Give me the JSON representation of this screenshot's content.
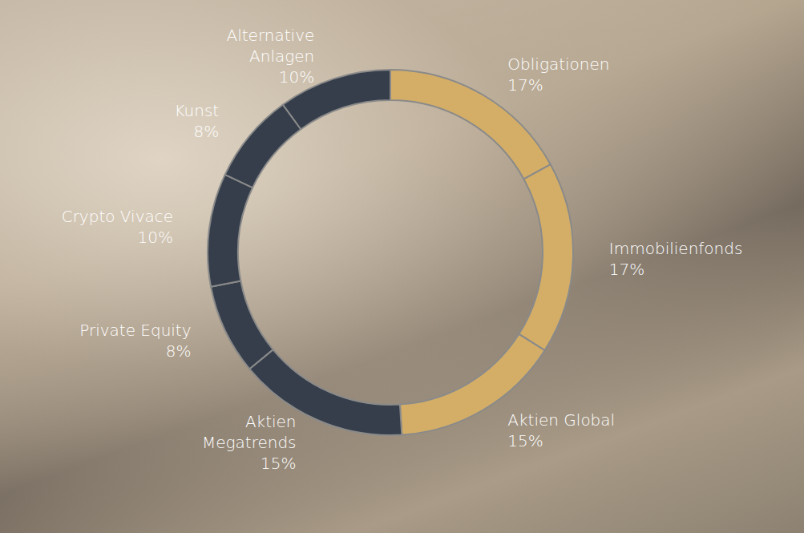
{
  "chart_data": {
    "type": "pie",
    "categories": [
      "Obligationen",
      "Immobilienfonds",
      "Aktien Global",
      "Aktien Megatrends",
      "Private Equity",
      "Crypto Vivace",
      "Kunst",
      "Alternative Anlagen"
    ],
    "values": [
      17,
      17,
      15,
      15,
      8,
      10,
      8,
      10
    ],
    "value_labels": [
      "17%",
      "17%",
      "15%",
      "15%",
      "8%",
      "10%",
      "8%",
      "10%"
    ],
    "colors": [
      "#d4ae67",
      "#d4ae67",
      "#d4ae67",
      "#353e4a",
      "#353e4a",
      "#353e4a",
      "#353e4a",
      "#353e4a"
    ],
    "data_labels": true
  }
}
